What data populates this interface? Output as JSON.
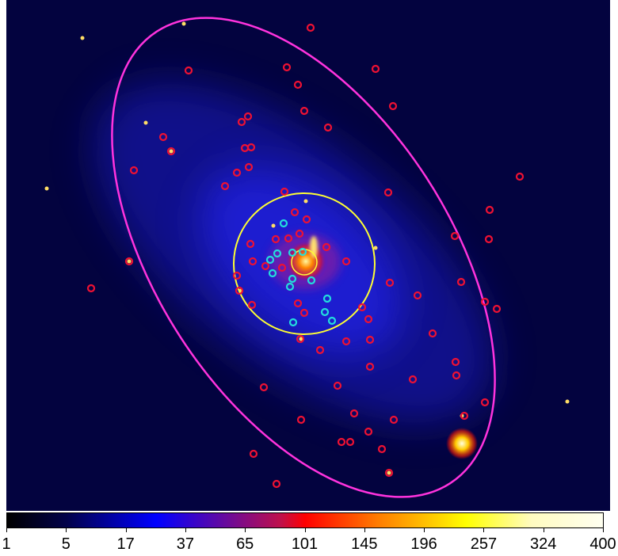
{
  "image": {
    "description_colors": {
      "background": "#02023a",
      "galaxy_boundary": "#ff33dd",
      "bulge_circle": "#ffff33",
      "source_marker_red": "#ee1133",
      "source_marker_cyan": "#22dddd"
    }
  },
  "colorbar": {
    "tick_labels": [
      "1",
      "5",
      "17",
      "37",
      "65",
      "101",
      "145",
      "196",
      "257",
      "324",
      "400"
    ],
    "colormap": [
      "#000000",
      "#0000ff",
      "#ff0000",
      "#ffff00",
      "#ffffff"
    ]
  }
}
